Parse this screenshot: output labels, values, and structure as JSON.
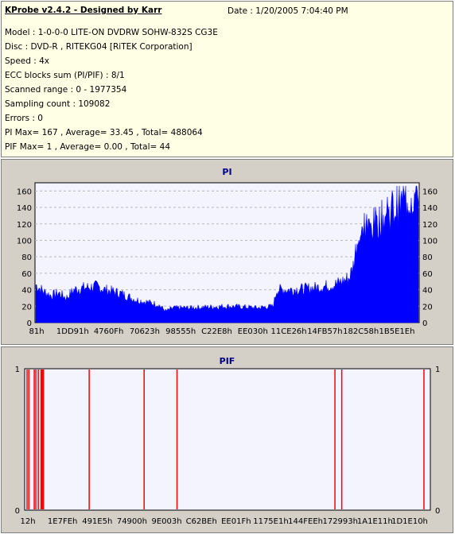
{
  "info": {
    "title": "KProbe v2.4.2 - Designed by Karr",
    "date": "Date : 1/20/2005 7:04:40 PM",
    "lines": [
      "Model : 1-0-0-0 LITE-ON DVDRW SOHW-832S  CG3E",
      "Disc : DVD-R , RITEKG04 [RiTEK Corporation]",
      "Speed : 4x",
      "ECC blocks sum (PI/PIF) : 8/1",
      "Scanned range : 0 - 1977354",
      "Sampling count : 109082",
      "Errors : 0",
      "PI Max= 167 , Average= 33.45 , Total= 488064",
      "PIF Max= 1 , Average= 0.00 , Total= 44"
    ]
  },
  "colors": {
    "pi_fill": "#0000ff",
    "pif_line": "#ff0000",
    "plot_bg": "#f4f4ff",
    "grid": "#b8b8b8"
  },
  "chart_data": [
    {
      "type": "area",
      "title": "PI",
      "ylim": [
        0,
        170
      ],
      "yticks": [
        0,
        20,
        40,
        60,
        80,
        100,
        120,
        140,
        160
      ],
      "xticks": [
        "81h",
        "1DD91h",
        "4760Fh",
        "70623h",
        "98555h",
        "C22E8h",
        "EE030h",
        "11CE26h",
        "14FB57h",
        "182C58h",
        "1B5E1Eh"
      ],
      "x_range": [
        0,
        1977354
      ],
      "profile": [
        [
          0,
          46
        ],
        [
          0.02,
          38
        ],
        [
          0.04,
          33
        ],
        [
          0.06,
          36
        ],
        [
          0.08,
          30
        ],
        [
          0.1,
          40
        ],
        [
          0.12,
          42
        ],
        [
          0.14,
          43
        ],
        [
          0.16,
          44
        ],
        [
          0.18,
          40
        ],
        [
          0.2,
          38
        ],
        [
          0.22,
          36
        ],
        [
          0.24,
          32
        ],
        [
          0.26,
          28
        ],
        [
          0.28,
          26
        ],
        [
          0.3,
          24
        ],
        [
          0.32,
          22
        ],
        [
          0.34,
          14
        ],
        [
          0.36,
          18
        ],
        [
          0.4,
          18
        ],
        [
          0.45,
          19
        ],
        [
          0.5,
          20
        ],
        [
          0.55,
          19
        ],
        [
          0.58,
          18
        ],
        [
          0.6,
          19
        ],
        [
          0.62,
          20
        ],
        [
          0.63,
          40
        ],
        [
          0.66,
          40
        ],
        [
          0.7,
          41
        ],
        [
          0.74,
          43
        ],
        [
          0.78,
          46
        ],
        [
          0.8,
          50
        ],
        [
          0.82,
          55
        ],
        [
          0.83,
          70
        ],
        [
          0.84,
          100
        ],
        [
          0.86,
          110
        ],
        [
          0.88,
          118
        ],
        [
          0.9,
          125
        ],
        [
          0.92,
          132
        ],
        [
          0.94,
          138
        ],
        [
          0.96,
          145
        ],
        [
          0.98,
          152
        ],
        [
          1.0,
          155
        ]
      ]
    },
    {
      "type": "bar",
      "title": "PIF",
      "ylim": [
        0,
        1
      ],
      "yticks": [
        0,
        1
      ],
      "xticks": [
        "12h",
        "1E7FEh",
        "491E5h",
        "74900h",
        "9E003h",
        "C62BEh",
        "EE01Fh",
        "1175E1h",
        "144FEEh",
        "172993h",
        "1A1E11h",
        "1D1E10h"
      ],
      "x_range": [
        0,
        1977354
      ],
      "events": [
        0.0,
        0.0045,
        0.018,
        0.022,
        0.028,
        0.035,
        0.037,
        0.039,
        0.041,
        0.155,
        0.292,
        0.374,
        0.768,
        0.785,
        0.99
      ]
    }
  ]
}
